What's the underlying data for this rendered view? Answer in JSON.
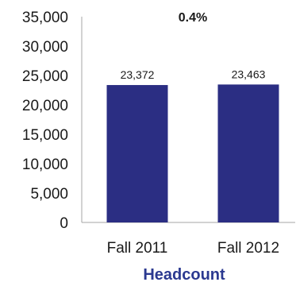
{
  "chart_data": {
    "type": "bar",
    "categories": [
      "Fall 2011",
      "Fall 2012"
    ],
    "values": [
      23372,
      23463
    ],
    "data_labels": [
      "23,372",
      "23,463"
    ],
    "annotation": "0.4%",
    "xlabel": "Headcount",
    "ylabel": "",
    "ylim": [
      0,
      35000
    ],
    "yticks": [
      0,
      5000,
      10000,
      15000,
      20000,
      25000,
      30000,
      35000
    ],
    "ytick_labels": [
      "0",
      "5,000",
      "10,000",
      "15,000",
      "20,000",
      "25,000",
      "30,000",
      "35,000"
    ],
    "grid": false,
    "legend": "none",
    "colors": {
      "bar": "#2b2e83",
      "xlabel": "#2b3990",
      "axis": "#a6a6a6"
    }
  }
}
